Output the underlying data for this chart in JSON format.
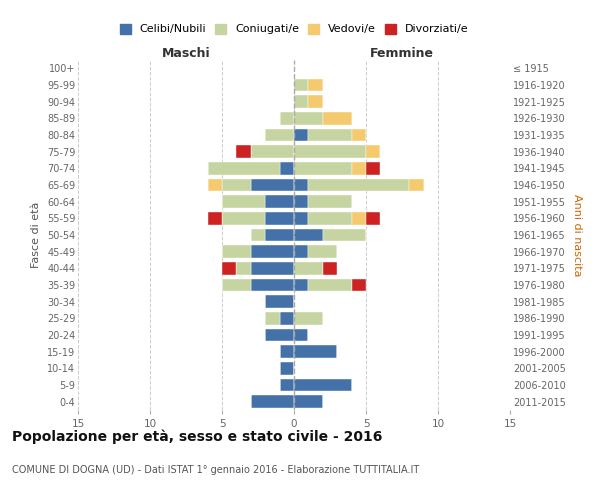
{
  "age_groups": [
    "0-4",
    "5-9",
    "10-14",
    "15-19",
    "20-24",
    "25-29",
    "30-34",
    "35-39",
    "40-44",
    "45-49",
    "50-54",
    "55-59",
    "60-64",
    "65-69",
    "70-74",
    "75-79",
    "80-84",
    "85-89",
    "90-94",
    "95-99",
    "100+"
  ],
  "birth_years": [
    "2011-2015",
    "2006-2010",
    "2001-2005",
    "1996-2000",
    "1991-1995",
    "1986-1990",
    "1981-1985",
    "1976-1980",
    "1971-1975",
    "1966-1970",
    "1961-1965",
    "1956-1960",
    "1951-1955",
    "1946-1950",
    "1941-1945",
    "1936-1940",
    "1931-1935",
    "1926-1930",
    "1921-1925",
    "1916-1920",
    "≤ 1915"
  ],
  "colors": {
    "celibi": "#4472a8",
    "coniugati": "#c5d4a0",
    "vedovi": "#f5c96e",
    "divorziati": "#cc2222"
  },
  "maschi": {
    "celibi": [
      3,
      1,
      1,
      1,
      2,
      1,
      2,
      3,
      3,
      3,
      2,
      2,
      2,
      3,
      1,
      0,
      0,
      0,
      0,
      0,
      0
    ],
    "coniugati": [
      0,
      0,
      0,
      0,
      0,
      1,
      0,
      2,
      1,
      2,
      1,
      3,
      3,
      2,
      5,
      3,
      2,
      1,
      0,
      0,
      0
    ],
    "vedovi": [
      0,
      0,
      0,
      0,
      0,
      0,
      0,
      0,
      0,
      0,
      0,
      0,
      0,
      1,
      0,
      0,
      0,
      0,
      0,
      0,
      0
    ],
    "divorziati": [
      0,
      0,
      0,
      0,
      0,
      0,
      0,
      0,
      1,
      0,
      0,
      1,
      0,
      0,
      0,
      1,
      0,
      0,
      0,
      0,
      0
    ]
  },
  "femmine": {
    "celibi": [
      2,
      4,
      0,
      3,
      1,
      0,
      0,
      1,
      0,
      1,
      2,
      1,
      1,
      1,
      0,
      0,
      1,
      0,
      0,
      0,
      0
    ],
    "coniugati": [
      0,
      0,
      0,
      0,
      0,
      2,
      0,
      3,
      2,
      2,
      3,
      3,
      3,
      7,
      4,
      5,
      3,
      2,
      1,
      1,
      0
    ],
    "vedovi": [
      0,
      0,
      0,
      0,
      0,
      0,
      0,
      0,
      0,
      0,
      0,
      1,
      0,
      1,
      1,
      1,
      1,
      2,
      1,
      1,
      0
    ],
    "divorziati": [
      0,
      0,
      0,
      0,
      0,
      0,
      0,
      1,
      1,
      0,
      0,
      1,
      0,
      0,
      1,
      0,
      0,
      0,
      0,
      0,
      0
    ]
  },
  "xlim": 15,
  "title": "Popolazione per età, sesso e stato civile - 2016",
  "subtitle": "COMUNE DI DOGNA (UD) - Dati ISTAT 1° gennaio 2016 - Elaborazione TUTTITALIA.IT",
  "xlabel_left": "Maschi",
  "xlabel_right": "Femmine",
  "ylabel": "Fasce di età",
  "ylabel_right": "Anni di nascita",
  "legend_labels": [
    "Celibi/Nubili",
    "Coniugati/e",
    "Vedovi/e",
    "Divorziati/e"
  ],
  "bg_color": "#ffffff",
  "grid_color": "#cccccc"
}
